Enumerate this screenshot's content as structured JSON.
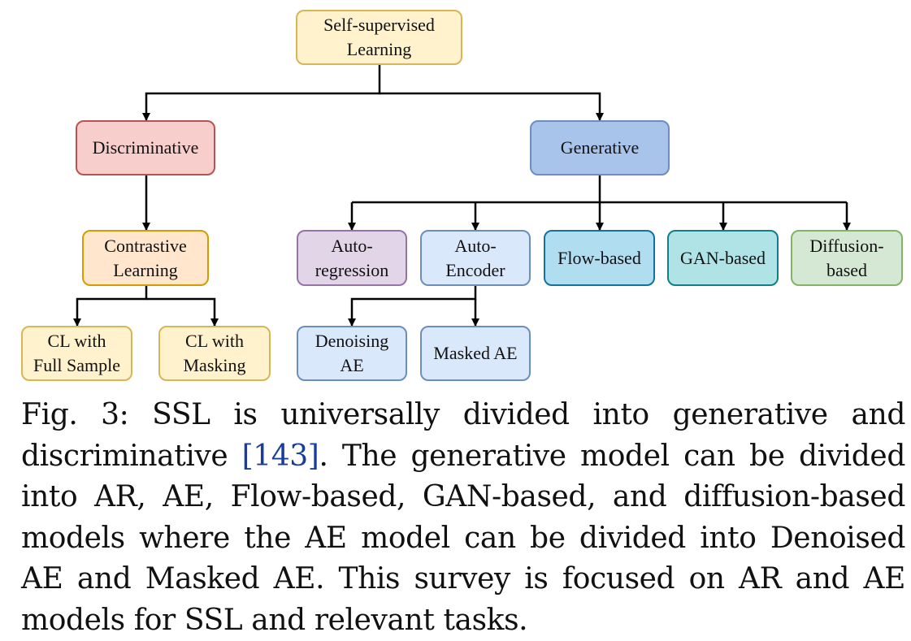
{
  "diagram": {
    "root": {
      "label": "Self-supervised\nLearning",
      "fill": "#fff2cc",
      "stroke": "#d6b656"
    },
    "discriminative": {
      "label": "Discriminative",
      "fill": "#f8cecc",
      "stroke": "#b85450"
    },
    "generative": {
      "label": "Generative",
      "fill": "#a9c4eb",
      "stroke": "#6c8ebf"
    },
    "contrastive": {
      "label": "Contrastive\nLearning",
      "fill": "#ffe6cc",
      "stroke": "#d79b00"
    },
    "cl_full": {
      "label": "CL with\nFull Sample",
      "fill": "#fff2cc",
      "stroke": "#d6b656"
    },
    "cl_mask": {
      "label": "CL with\nMasking",
      "fill": "#fff2cc",
      "stroke": "#d6b656"
    },
    "autoregression": {
      "label": "Auto-\nregression",
      "fill": "#e1d5e7",
      "stroke": "#9673a6"
    },
    "autoencoder": {
      "label": "Auto-\nEncoder",
      "fill": "#dae8fc",
      "stroke": "#6c8ebf"
    },
    "flow": {
      "label": "Flow-based",
      "fill": "#b1ddf0",
      "stroke": "#10739e"
    },
    "gan": {
      "label": "GAN-based",
      "fill": "#b0e3e6",
      "stroke": "#0e8088"
    },
    "diffusion": {
      "label": "Diffusion-\nbased",
      "fill": "#d5e8d4",
      "stroke": "#82b366"
    },
    "denoising": {
      "label": "Denoising\nAE",
      "fill": "#dae8fc",
      "stroke": "#6c8ebf"
    },
    "masked": {
      "label": "Masked AE",
      "fill": "#dae8fc",
      "stroke": "#6c8ebf"
    }
  },
  "caption": {
    "before": "Fig. 3: SSL is universally divided into generative and discriminative ",
    "citation": "[143]",
    "after": ". The generative model can be divided into AR, AE, Flow-based, GAN-based, and diffusion-based models where the AE model can be divided into Denoised AE and Masked AE. This survey is focused on AR and AE models for SSL and relevant tasks.",
    "citation_color": "#1a3d9c"
  }
}
